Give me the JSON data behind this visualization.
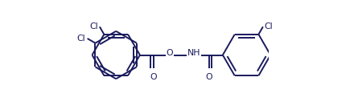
{
  "bg_color": "#ffffff",
  "bond_color": "#1a1a5e",
  "atom_color": "#1a1a5e",
  "lw": 1.4,
  "r": 0.13,
  "fig_width": 4.4,
  "fig_height": 1.37,
  "dpi": 100,
  "xlim": [
    0.0,
    1.0
  ],
  "ylim": [
    0.28,
    0.88
  ]
}
